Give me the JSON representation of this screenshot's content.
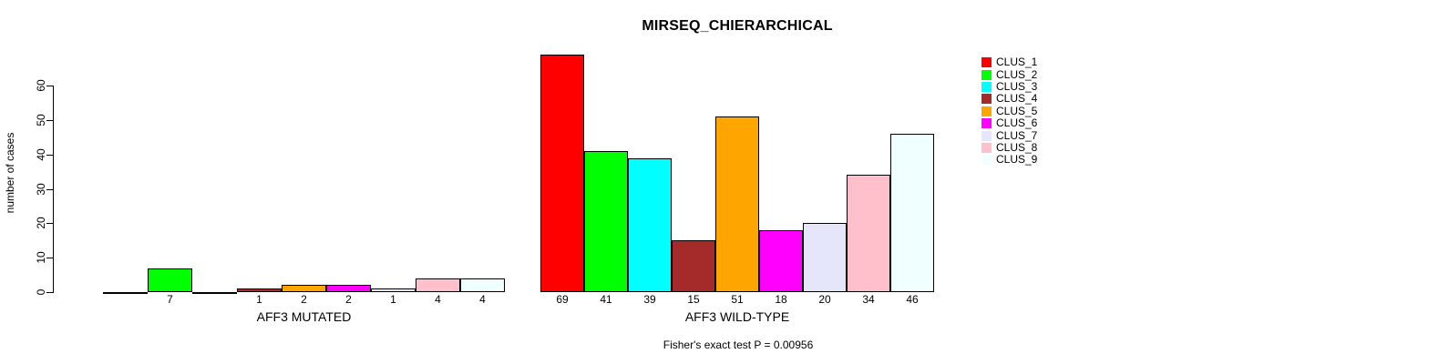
{
  "chart_data": {
    "type": "bar",
    "title": "MIRSEQ_CHIERARCHICAL",
    "ylabel": "number of cases",
    "xlabel": "",
    "ylim": [
      0,
      60
    ],
    "yticks": [
      0,
      10,
      20,
      30,
      40,
      50,
      60
    ],
    "grid": false,
    "legend_position": "right",
    "annotation": "Fisher's exact test P = 0.00956",
    "categories": [
      "AFF3 MUTATED",
      "AFF3 WILD-TYPE"
    ],
    "series": [
      {
        "name": "CLUS_1",
        "color": "#FF0000",
        "values": [
          0,
          69
        ]
      },
      {
        "name": "CLUS_2",
        "color": "#00FF00",
        "values": [
          7,
          41
        ]
      },
      {
        "name": "CLUS_3",
        "color": "#00FFFF",
        "values": [
          0,
          39
        ]
      },
      {
        "name": "CLUS_4",
        "color": "#A52A2A",
        "values": [
          1,
          15
        ]
      },
      {
        "name": "CLUS_5",
        "color": "#FFA500",
        "values": [
          2,
          51
        ]
      },
      {
        "name": "CLUS_6",
        "color": "#FF00FF",
        "values": [
          2,
          18
        ]
      },
      {
        "name": "CLUS_7",
        "color": "#E6E6FA",
        "values": [
          1,
          20
        ]
      },
      {
        "name": "CLUS_8",
        "color": "#FFC0CB",
        "values": [
          4,
          34
        ]
      },
      {
        "name": "CLUS_9",
        "color": "#F0FFFF",
        "values": [
          4,
          46
        ]
      }
    ],
    "bar_value_labels_shown_when": "value > 0"
  }
}
